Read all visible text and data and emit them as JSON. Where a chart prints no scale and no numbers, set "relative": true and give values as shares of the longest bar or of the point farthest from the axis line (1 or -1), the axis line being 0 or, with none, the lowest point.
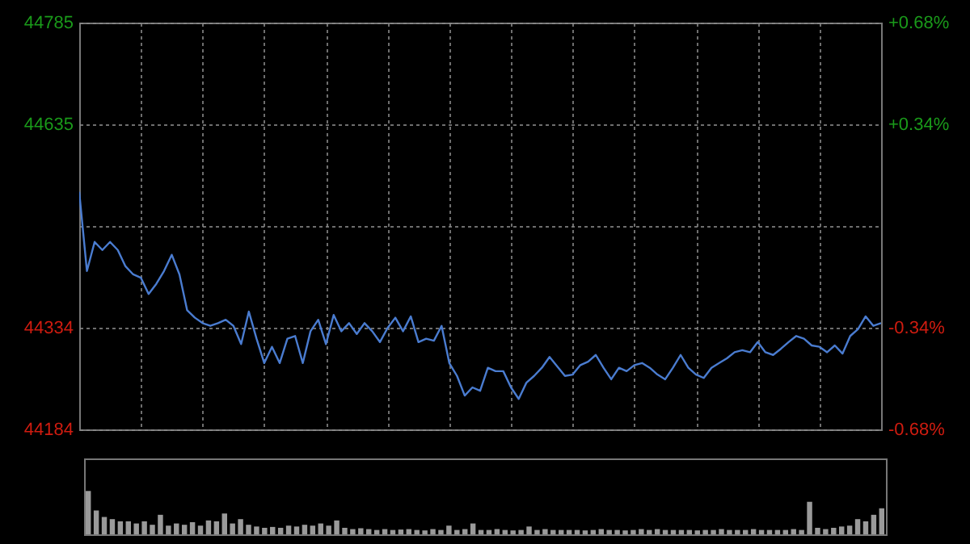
{
  "chart_data": [
    {
      "type": "line",
      "color": "#4a7cd0",
      "categories": [
        null,
        null,
        null,
        null,
        null,
        null,
        null,
        null,
        null,
        null,
        null,
        null,
        null,
        null,
        null,
        null,
        null,
        null,
        null,
        null,
        null,
        null,
        null,
        null,
        null,
        null,
        null,
        null,
        null,
        null,
        null,
        null,
        null,
        null,
        null,
        null,
        null,
        null,
        null,
        null,
        null,
        null,
        null,
        null,
        null,
        null,
        null,
        null,
        null,
        null,
        null,
        null,
        null,
        null,
        null,
        null,
        null,
        null,
        null,
        null,
        null,
        null,
        null,
        null,
        null,
        null,
        null,
        null,
        null,
        null,
        null,
        null,
        null,
        null,
        null,
        null,
        null,
        null,
        null,
        null,
        null,
        null,
        null,
        null,
        null,
        null,
        null,
        null,
        null,
        null,
        null,
        null,
        null,
        null,
        null,
        null,
        null,
        null,
        null,
        null,
        null,
        null,
        null,
        null,
        null
      ],
      "values": [
        44535,
        44418,
        44461,
        44449,
        44461,
        44449,
        44425,
        44413,
        44408,
        44384,
        44399,
        44418,
        44442,
        44413,
        44360,
        44349,
        44341,
        44337,
        44341,
        44346,
        44337,
        44310,
        44358,
        44318,
        44282,
        44306,
        44282,
        44318,
        44322,
        44282,
        44329,
        44346,
        44310,
        44353,
        44329,
        44341,
        44325,
        44341,
        44329,
        44313,
        44334,
        44349,
        44329,
        44351,
        44313,
        44318,
        44315,
        44337,
        44282,
        44263,
        44234,
        44246,
        44241,
        44275,
        44270,
        44270,
        44246,
        44229,
        44253,
        44263,
        44275,
        44291,
        44277,
        44263,
        44265,
        44279,
        44284,
        44294,
        44275,
        44258,
        44275,
        44270,
        44279,
        44282,
        44275,
        44265,
        44258,
        44275,
        44294,
        44275,
        44265,
        44260,
        44275,
        44282,
        44289,
        44298,
        44301,
        44298,
        44313,
        44298,
        44294,
        44303,
        44313,
        44322,
        44318,
        44308,
        44306,
        44298,
        44308,
        44296,
        44322,
        44332,
        44351,
        44337,
        44341
      ],
      "ylim": [
        44184,
        44785
      ],
      "yticks": [
        44184,
        44334,
        {
          "value": 44485,
          "label": null
        },
        44635,
        44785
      ],
      "y2lim": [
        -0.68,
        0.68
      ],
      "y2ticks": [
        {
          "value": -0.68,
          "label": "-0.68%"
        },
        {
          "value": -0.34,
          "label": "-0.34%"
        },
        {
          "value": 0.34,
          "label": "+0.34%"
        },
        {
          "value": 0.68,
          "label": "+0.68%"
        }
      ],
      "grid": true,
      "tick_labels": "y"
    },
    {
      "type": "bar",
      "relative": true,
      "color": "#9a9a9a",
      "tick_labels": false,
      "categories": [
        null,
        null,
        null,
        null,
        null,
        null,
        null,
        null,
        null,
        null,
        null,
        null,
        null,
        null,
        null,
        null,
        null,
        null,
        null,
        null,
        null,
        null,
        null,
        null,
        null,
        null,
        null,
        null,
        null,
        null,
        null,
        null,
        null,
        null,
        null,
        null,
        null,
        null,
        null,
        null,
        null,
        null,
        null,
        null,
        null,
        null,
        null,
        null,
        null,
        null,
        null,
        null,
        null,
        null,
        null,
        null,
        null,
        null,
        null,
        null,
        null,
        null,
        null,
        null,
        null,
        null,
        null,
        null,
        null,
        null,
        null,
        null,
        null,
        null,
        null,
        null,
        null,
        null,
        null,
        null,
        null,
        null,
        null,
        null,
        null,
        null,
        null,
        null,
        null,
        null,
        null,
        null,
        null,
        null,
        null,
        null,
        null,
        null,
        null,
        null
      ],
      "values": [
        1,
        0.55,
        0.4,
        0.35,
        0.3,
        0.3,
        0.25,
        0.3,
        0.22,
        0.45,
        0.2,
        0.25,
        0.22,
        0.28,
        0.2,
        0.32,
        0.3,
        0.48,
        0.25,
        0.35,
        0.22,
        0.18,
        0.15,
        0.17,
        0.15,
        0.2,
        0.18,
        0.22,
        0.2,
        0.25,
        0.2,
        0.32,
        0.15,
        0.12,
        0.14,
        0.12,
        0.1,
        0.12,
        0.1,
        0.11,
        0.12,
        0.1,
        0.09,
        0.12,
        0.1,
        0.2,
        0.1,
        0.12,
        0.25,
        0.1,
        0.1,
        0.12,
        0.1,
        0.09,
        0.1,
        0.18,
        0.1,
        0.12,
        0.1,
        0.1,
        0.1,
        0.1,
        0.09,
        0.1,
        0.12,
        0.1,
        0.1,
        0.09,
        0.1,
        0.12,
        0.1,
        0.12,
        0.1,
        0.1,
        0.1,
        0.1,
        0.09,
        0.1,
        0.1,
        0.12,
        0.1,
        0.1,
        0.1,
        0.12,
        0.1,
        0.1,
        0.1,
        0.1,
        0.12,
        0.1,
        0.75,
        0.15,
        0.12,
        0.15,
        0.18,
        0.2,
        0.35,
        0.3,
        0.45,
        0.6
      ]
    }
  ]
}
